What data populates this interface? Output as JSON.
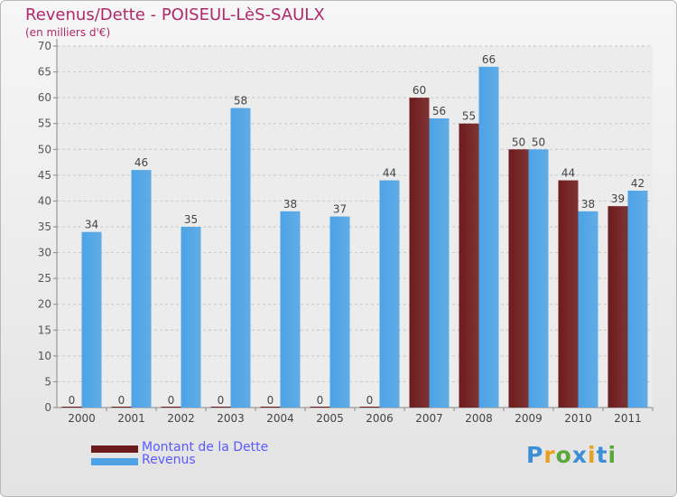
{
  "header": {
    "title": "Revenus/Dette - POISEUL-LèS-SAULX",
    "subtitle": "(en milliers d'€)"
  },
  "chart_data": {
    "type": "bar",
    "categories": [
      "2000",
      "2001",
      "2002",
      "2003",
      "2004",
      "2005",
      "2006",
      "2007",
      "2008",
      "2009",
      "2010",
      "2011"
    ],
    "series": [
      {
        "name": "Montant de la Dette",
        "color": "#6e1b1b",
        "values": [
          0,
          0,
          0,
          0,
          0,
          0,
          0,
          60,
          55,
          50,
          44,
          39
        ]
      },
      {
        "name": "Revenus",
        "color": "#4da3e6",
        "values": [
          34,
          46,
          35,
          58,
          38,
          37,
          44,
          56,
          66,
          50,
          38,
          42
        ]
      }
    ],
    "ylim": [
      0,
      70
    ],
    "ytick_step": 5,
    "grid": true,
    "legend_position": "bottom-left"
  },
  "legend": {
    "items": [
      {
        "label": "Montant de la Dette",
        "color": "#6e1b1b"
      },
      {
        "label": "Revenus",
        "color": "#4da3e6"
      }
    ]
  },
  "branding": {
    "logo_text": "Proxiti"
  }
}
